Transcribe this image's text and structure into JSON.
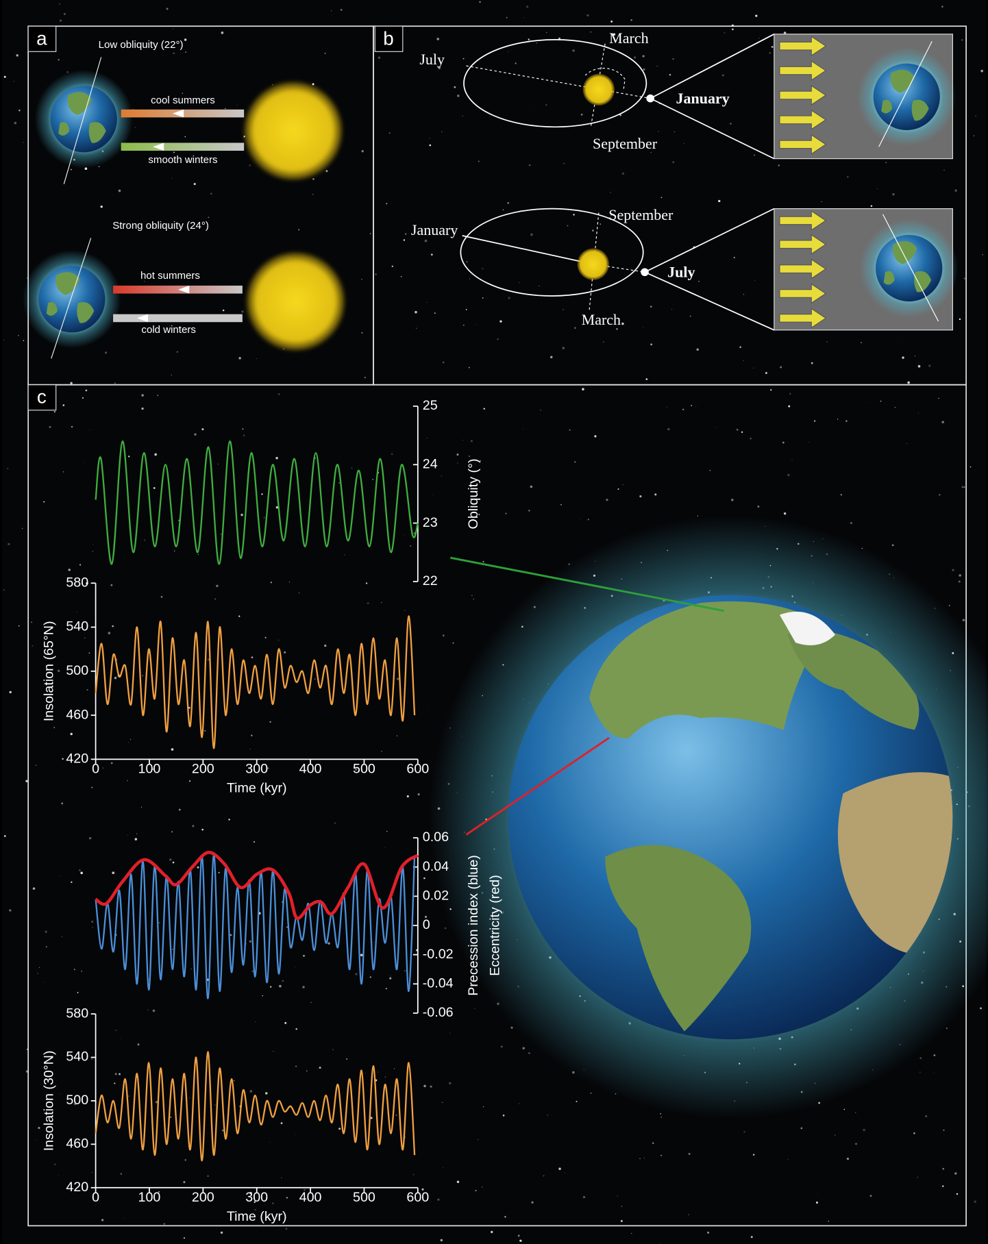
{
  "panels": {
    "a": {
      "label": "a",
      "low_obliquity": "Low obliquity (22°)",
      "cool_summers": "cool summers",
      "smooth_winters": "smooth winters",
      "strong_obliquity": "Strong obliquity (24°)",
      "hot_summers": "hot summers",
      "cold_winters": "cold winters"
    },
    "b": {
      "label": "b",
      "top": {
        "march": "March",
        "july": "July",
        "january": "January",
        "september": "September"
      },
      "bottom": {
        "september": "September",
        "january": "January",
        "july": "July",
        "march": "March"
      }
    },
    "c": {
      "label": "c"
    }
  },
  "chart_data": [
    {
      "type": "line",
      "xlim": [
        0,
        600
      ],
      "y2lim": [
        22,
        25
      ],
      "y2ticks": [
        22,
        23,
        24,
        25
      ],
      "y2label": "Obliquity (°)",
      "series": [
        {
          "color": "#3fae3f",
          "axis": "y2",
          "x": [
            0,
            10,
            30,
            50,
            70,
            90,
            110,
            130,
            150,
            170,
            190,
            210,
            230,
            250,
            270,
            290,
            310,
            330,
            350,
            370,
            390,
            410,
            430,
            450,
            470,
            490,
            510,
            530,
            550,
            570,
            590,
            600
          ],
          "values": [
            23.4,
            24.1,
            22.3,
            24.4,
            22.5,
            24.2,
            22.6,
            24.0,
            22.6,
            24.1,
            22.5,
            24.3,
            22.3,
            24.4,
            22.4,
            24.2,
            22.6,
            24.0,
            22.7,
            24.1,
            22.6,
            24.2,
            22.6,
            24.0,
            22.7,
            23.9,
            22.6,
            24.1,
            22.5,
            24.0,
            22.8,
            23.0
          ]
        }
      ]
    },
    {
      "type": "line",
      "xlim": [
        0,
        600
      ],
      "xticks": [
        0,
        100,
        200,
        300,
        400,
        500,
        600
      ],
      "xlabel": "Time (kyr)",
      "ylim": [
        420,
        580
      ],
      "yticks": [
        420,
        460,
        500,
        540,
        580
      ],
      "ylabel": "Insolation (65°N)",
      "series": [
        {
          "color": "#f0a040",
          "x": [
            0,
            11,
            22,
            33,
            44,
            55,
            66,
            77,
            88,
            99,
            110,
            121,
            132,
            143,
            154,
            165,
            176,
            187,
            198,
            209,
            220,
            231,
            242,
            253,
            264,
            275,
            286,
            297,
            308,
            319,
            330,
            341,
            352,
            363,
            374,
            385,
            396,
            407,
            418,
            429,
            440,
            451,
            462,
            473,
            484,
            495,
            506,
            517,
            528,
            539,
            550,
            561,
            572,
            583,
            594
          ],
          "values": [
            480,
            525,
            470,
            515,
            495,
            505,
            470,
            540,
            460,
            520,
            475,
            545,
            445,
            530,
            470,
            510,
            450,
            535,
            440,
            545,
            430,
            540,
            460,
            520,
            470,
            510,
            480,
            505,
            475,
            515,
            470,
            520,
            485,
            505,
            490,
            500,
            480,
            510,
            485,
            505,
            470,
            520,
            480,
            515,
            460,
            525,
            470,
            530,
            475,
            510,
            460,
            530,
            455,
            550,
            460
          ]
        }
      ]
    },
    {
      "type": "line",
      "xlim": [
        0,
        600
      ],
      "y2lim": [
        -0.06,
        0.06
      ],
      "y2ticks": [
        -0.06,
        -0.04,
        -0.02,
        0,
        0.02,
        0.04,
        0.06
      ],
      "y2label": [
        "Precession index (blue)",
        "Eccentricity (red)"
      ],
      "series": [
        {
          "color": "#4a8fd8",
          "axis": "y2",
          "width": 2,
          "x": [
            0,
            11,
            22,
            33,
            44,
            55,
            66,
            77,
            88,
            99,
            110,
            121,
            132,
            143,
            154,
            165,
            176,
            187,
            198,
            209,
            220,
            231,
            242,
            253,
            264,
            275,
            286,
            297,
            308,
            319,
            330,
            341,
            352,
            363,
            374,
            385,
            396,
            407,
            418,
            429,
            440,
            451,
            462,
            473,
            484,
            495,
            506,
            517,
            528,
            539,
            550,
            561,
            572,
            583,
            594
          ],
          "values": [
            0.018,
            -0.016,
            0.015,
            -0.018,
            0.024,
            -0.03,
            0.035,
            -0.04,
            0.044,
            -0.044,
            0.041,
            -0.037,
            0.034,
            -0.03,
            0.03,
            -0.035,
            0.039,
            -0.044,
            0.048,
            -0.05,
            0.049,
            -0.045,
            0.039,
            -0.032,
            0.026,
            -0.027,
            0.031,
            -0.035,
            0.037,
            -0.039,
            0.038,
            -0.033,
            0.025,
            -0.015,
            0.006,
            -0.01,
            0.015,
            -0.017,
            0.017,
            -0.012,
            0.008,
            -0.015,
            0.022,
            -0.03,
            0.036,
            -0.04,
            0.038,
            -0.03,
            0.018,
            -0.012,
            0.02,
            -0.03,
            0.04,
            -0.045,
            0.048
          ]
        },
        {
          "color": "#e0202a",
          "axis": "y2",
          "width": 4,
          "x": [
            0,
            20,
            50,
            90,
            130,
            150,
            180,
            210,
            240,
            270,
            300,
            330,
            360,
            375,
            400,
            420,
            440,
            470,
            500,
            535,
            570,
            600
          ],
          "values": [
            0.018,
            0.015,
            0.03,
            0.045,
            0.034,
            0.028,
            0.04,
            0.05,
            0.042,
            0.026,
            0.035,
            0.038,
            0.022,
            0.005,
            0.014,
            0.016,
            0.008,
            0.026,
            0.042,
            0.012,
            0.04,
            0.048
          ]
        }
      ]
    },
    {
      "type": "line",
      "xlim": [
        0,
        600
      ],
      "xticks": [
        0,
        100,
        200,
        300,
        400,
        500,
        600
      ],
      "xlabel": "Time (kyr)",
      "ylim": [
        420,
        580
      ],
      "yticks": [
        420,
        460,
        500,
        540,
        580
      ],
      "ylabel": "Insolation (30°N)",
      "series": [
        {
          "color": "#f0a040",
          "x": [
            0,
            11,
            22,
            33,
            44,
            55,
            66,
            77,
            88,
            99,
            110,
            121,
            132,
            143,
            154,
            165,
            176,
            187,
            198,
            209,
            220,
            231,
            242,
            253,
            264,
            275,
            286,
            297,
            308,
            319,
            330,
            341,
            352,
            363,
            374,
            385,
            396,
            407,
            418,
            429,
            440,
            451,
            462,
            473,
            484,
            495,
            506,
            517,
            528,
            539,
            550,
            561,
            572,
            583,
            594
          ],
          "values": [
            470,
            505,
            480,
            500,
            475,
            520,
            465,
            525,
            455,
            535,
            450,
            530,
            460,
            520,
            465,
            525,
            455,
            540,
            445,
            545,
            450,
            530,
            465,
            520,
            470,
            510,
            480,
            505,
            478,
            500,
            485,
            500,
            490,
            495,
            487,
            498,
            485,
            500,
            482,
            505,
            480,
            515,
            470,
            520,
            462,
            528,
            455,
            532,
            460,
            515,
            470,
            520,
            455,
            535,
            450
          ]
        }
      ]
    }
  ]
}
